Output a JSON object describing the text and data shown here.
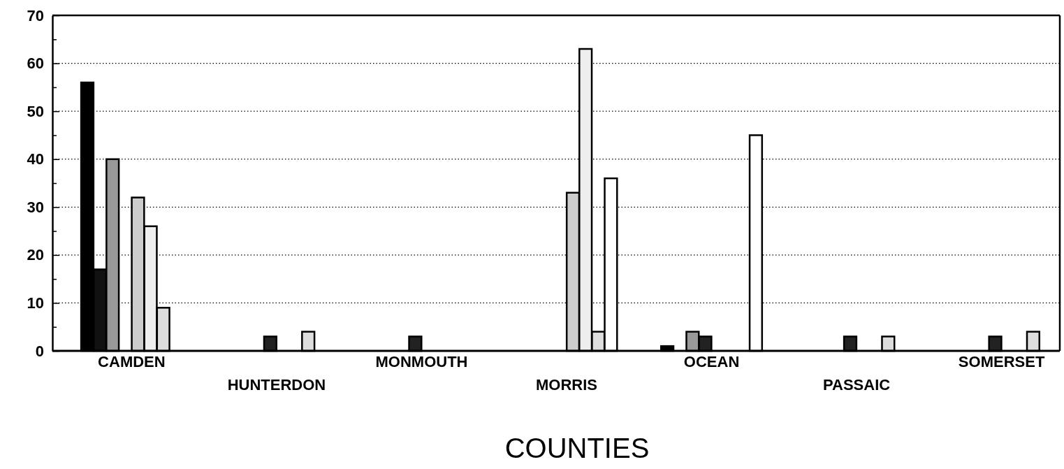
{
  "chart_data": {
    "type": "bar",
    "xlabel": "COUNTIES",
    "categories": [
      "CAMDEN",
      "HUNTERDON",
      "MONMOUTH",
      "MORRIS",
      "OCEAN",
      "PASSAIC",
      "SOMERSET"
    ],
    "series": [
      {
        "color": "#000000",
        "values": [
          56,
          null,
          null,
          null,
          1,
          null,
          null
        ]
      },
      {
        "color": "#111111",
        "values": [
          17,
          null,
          null,
          null,
          null,
          null,
          null
        ]
      },
      {
        "color": "#999999",
        "values": [
          40,
          null,
          null,
          null,
          4,
          null,
          null
        ]
      },
      {
        "color": "#222222",
        "values": [
          null,
          3,
          3,
          null,
          3,
          3,
          3
        ]
      },
      {
        "color": "#cccccc",
        "values": [
          32,
          null,
          null,
          33,
          null,
          null,
          null
        ]
      },
      {
        "color": "#eeeeee",
        "values": [
          26,
          null,
          null,
          63,
          null,
          null,
          null
        ]
      },
      {
        "color": "#dddddd",
        "values": [
          9,
          4,
          null,
          4,
          null,
          3,
          4
        ]
      },
      {
        "color": "#ffffff",
        "values": [
          null,
          null,
          null,
          36,
          45,
          null,
          null
        ]
      }
    ],
    "ylim": [
      0,
      70
    ],
    "yticks": [
      0,
      {
        "value": 5,
        "label": null
      },
      10,
      {
        "value": 15,
        "label": null
      },
      20,
      {
        "value": 25,
        "label": null
      },
      30,
      {
        "value": 35,
        "label": null
      },
      40,
      {
        "value": 45,
        "label": null
      },
      50,
      {
        "value": 55,
        "label": null
      },
      60,
      {
        "value": 65,
        "label": null
      },
      70
    ],
    "grid": "y"
  }
}
